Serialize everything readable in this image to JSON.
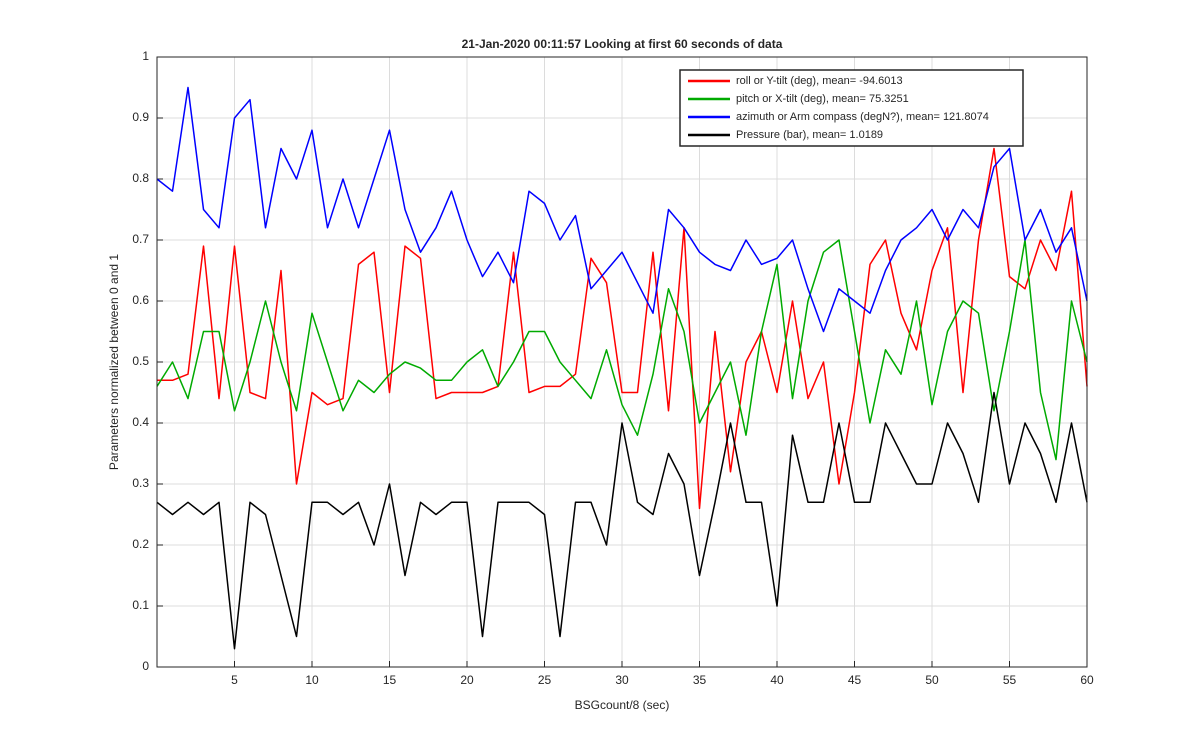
{
  "chart_data": {
    "type": "line",
    "title": "21-Jan-2020 00:11:57 Looking at first 60 seconds of data",
    "xlabel": "BSGcount/8 (sec)",
    "ylabel": "Parameters normalized between 0 and 1",
    "x": [
      0,
      1,
      2,
      3,
      4,
      5,
      6,
      7,
      8,
      9,
      10,
      11,
      12,
      13,
      14,
      15,
      16,
      17,
      18,
      19,
      20,
      21,
      22,
      23,
      24,
      25,
      26,
      27,
      28,
      29,
      30,
      31,
      32,
      33,
      34,
      35,
      36,
      37,
      38,
      39,
      40,
      41,
      42,
      43,
      44,
      45,
      46,
      47,
      48,
      49,
      50,
      51,
      52,
      53,
      54,
      55,
      56,
      57,
      58,
      59,
      60
    ],
    "series": [
      {
        "name": "roll or Y-tilt (deg), mean= -94.6013",
        "color": "#ff0000",
        "values": [
          0.47,
          0.47,
          0.48,
          0.69,
          0.44,
          0.69,
          0.45,
          0.44,
          0.65,
          0.3,
          0.45,
          0.43,
          0.44,
          0.66,
          0.68,
          0.45,
          0.69,
          0.67,
          0.44,
          0.45,
          0.45,
          0.45,
          0.46,
          0.68,
          0.45,
          0.46,
          0.46,
          0.48,
          0.67,
          0.63,
          0.45,
          0.45,
          0.68,
          0.42,
          0.72,
          0.26,
          0.55,
          0.32,
          0.5,
          0.55,
          0.45,
          0.6,
          0.44,
          0.5,
          0.3,
          0.45,
          0.66,
          0.7,
          0.58,
          0.52,
          0.65,
          0.72,
          0.45,
          0.7,
          0.85,
          0.64,
          0.62,
          0.7,
          0.65,
          0.78,
          0.46
        ]
      },
      {
        "name": "pitch or X-tilt (deg), mean= 75.3251",
        "color": "#00aa00",
        "values": [
          0.46,
          0.5,
          0.44,
          0.55,
          0.55,
          0.42,
          0.5,
          0.6,
          0.5,
          0.42,
          0.58,
          0.5,
          0.42,
          0.47,
          0.45,
          0.48,
          0.5,
          0.49,
          0.47,
          0.47,
          0.5,
          0.52,
          0.46,
          0.5,
          0.55,
          0.55,
          0.5,
          0.47,
          0.44,
          0.52,
          0.43,
          0.38,
          0.48,
          0.62,
          0.55,
          0.4,
          0.45,
          0.5,
          0.38,
          0.55,
          0.66,
          0.44,
          0.6,
          0.68,
          0.7,
          0.55,
          0.4,
          0.52,
          0.48,
          0.6,
          0.43,
          0.55,
          0.6,
          0.58,
          0.42,
          0.55,
          0.7,
          0.45,
          0.34,
          0.6,
          0.5
        ]
      },
      {
        "name": "azimuth or Arm compass (degN?), mean= 121.8074",
        "color": "#0000ff",
        "values": [
          0.8,
          0.78,
          0.95,
          0.75,
          0.72,
          0.9,
          0.93,
          0.72,
          0.85,
          0.8,
          0.88,
          0.72,
          0.8,
          0.72,
          0.8,
          0.88,
          0.75,
          0.68,
          0.72,
          0.78,
          0.7,
          0.64,
          0.68,
          0.63,
          0.78,
          0.76,
          0.7,
          0.74,
          0.62,
          0.65,
          0.68,
          0.63,
          0.58,
          0.75,
          0.72,
          0.68,
          0.66,
          0.65,
          0.7,
          0.66,
          0.67,
          0.7,
          0.62,
          0.55,
          0.62,
          0.6,
          0.58,
          0.65,
          0.7,
          0.72,
          0.75,
          0.7,
          0.75,
          0.72,
          0.82,
          0.85,
          0.7,
          0.75,
          0.68,
          0.72,
          0.6
        ]
      },
      {
        "name": "Pressure (bar), mean= 1.0189",
        "color": "#000000",
        "values": [
          0.27,
          0.25,
          0.27,
          0.25,
          0.27,
          0.03,
          0.27,
          0.25,
          0.15,
          0.05,
          0.27,
          0.27,
          0.25,
          0.27,
          0.2,
          0.3,
          0.15,
          0.27,
          0.25,
          0.27,
          0.27,
          0.05,
          0.27,
          0.27,
          0.27,
          0.25,
          0.05,
          0.27,
          0.27,
          0.2,
          0.4,
          0.27,
          0.25,
          0.35,
          0.3,
          0.15,
          0.27,
          0.4,
          0.27,
          0.27,
          0.1,
          0.38,
          0.27,
          0.27,
          0.4,
          0.27,
          0.27,
          0.4,
          0.35,
          0.3,
          0.3,
          0.4,
          0.35,
          0.27,
          0.45,
          0.3,
          0.4,
          0.35,
          0.27,
          0.4,
          0.27
        ]
      }
    ],
    "xlim": [
      0,
      60
    ],
    "xticks": [
      5,
      10,
      15,
      20,
      25,
      30,
      35,
      40,
      45,
      50,
      55,
      60
    ],
    "ylim": [
      0,
      1
    ],
    "yticks": [
      0,
      0.1,
      0.2,
      0.3,
      0.4,
      0.5,
      0.6,
      0.7,
      0.8,
      0.9,
      1
    ],
    "grid": true,
    "legend_position": "northeast"
  }
}
